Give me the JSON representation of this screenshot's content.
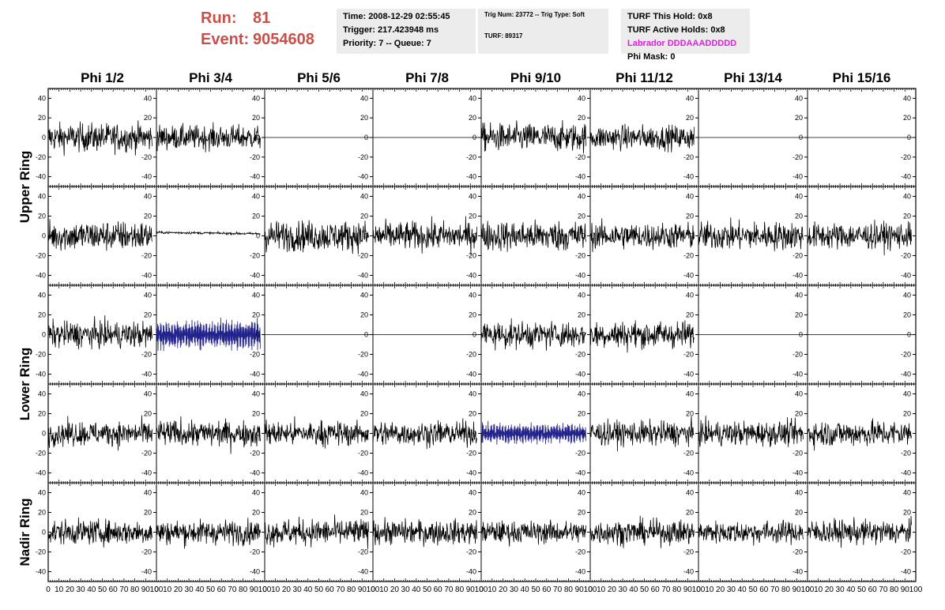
{
  "header": {
    "run_label": "Run:",
    "run_value": "81",
    "event_label": "Event:",
    "event_value": "9054608",
    "accent_color": "#c8504a"
  },
  "time_box": {
    "time": "Time: 2008-12-29 02:55:45",
    "trigger": "Trigger: 217.423948 ms",
    "priority": "Priority: 7 -- Queue: 7"
  },
  "trig_box": {
    "trig": "Trig Num: 23772 -- Trig Type: Soft",
    "turf": "TURF: 89317"
  },
  "turf_box": {
    "this_hold": "TURF This Hold: 0x8",
    "active_holds": "TURF Active Holds: 0x8",
    "labrador": "Labrador DDDAAADDDDD",
    "phi_mask": "Phi Mask: 0",
    "labrador_color": "#e818e8"
  },
  "chart_data": {
    "type": "line",
    "columns": [
      "Phi 1/2",
      "Phi 3/4",
      "Phi 5/6",
      "Phi 7/8",
      "Phi 9/10",
      "Phi 11/12",
      "Phi 13/14",
      "Phi 15/16"
    ],
    "ring_labels": [
      "Upper Ring",
      "Lower Ring",
      "Nadir Ring"
    ],
    "xlim": [
      0,
      100
    ],
    "ylim": [
      -50,
      50
    ],
    "x_ticks": [
      0,
      10,
      20,
      30,
      40,
      50,
      60,
      70,
      80,
      90,
      100
    ],
    "x_tick_labels": [
      "0",
      "10",
      "20",
      "30",
      "40",
      "50",
      "60",
      "70",
      "80",
      "90",
      "100"
    ],
    "y_ticks": [
      -40,
      -20,
      0,
      20,
      40
    ],
    "y_tick_labels": [
      "-40",
      "-20",
      "0",
      "20",
      "40"
    ],
    "x_range_samples": [
      0,
      96
    ],
    "rows": [
      {
        "row_index": 0,
        "cells": [
          {
            "column": "Phi 1/2",
            "style": "noise",
            "amplitude": 14,
            "color": "#000000"
          },
          {
            "column": "Phi 3/4",
            "style": "noise",
            "amplitude": 12,
            "color": "#000000"
          },
          {
            "column": "Phi 5/6",
            "style": "flat",
            "amplitude": 0,
            "color": "#000000"
          },
          {
            "column": "Phi 7/8",
            "style": "flat",
            "amplitude": 0,
            "color": "#000000"
          },
          {
            "column": "Phi 9/10",
            "style": "noise",
            "amplitude": 14,
            "color": "#000000"
          },
          {
            "column": "Phi 11/12",
            "style": "noise",
            "amplitude": 12,
            "color": "#000000"
          },
          {
            "column": "Phi 13/14",
            "style": "flat",
            "amplitude": 0,
            "color": "#000000"
          },
          {
            "column": "Phi 15/16",
            "style": "flat",
            "amplitude": 0,
            "color": "#000000"
          }
        ]
      },
      {
        "row_index": 1,
        "cells": [
          {
            "column": "Phi 1/2",
            "style": "noise",
            "amplitude": 15,
            "color": "#000000"
          },
          {
            "column": "Phi 3/4",
            "style": "small",
            "amplitude": 2,
            "color": "#000000"
          },
          {
            "column": "Phi 5/6",
            "style": "noise",
            "amplitude": 15,
            "color": "#000000"
          },
          {
            "column": "Phi 7/8",
            "style": "noise",
            "amplitude": 14,
            "color": "#000000"
          },
          {
            "column": "Phi 9/10",
            "style": "noise",
            "amplitude": 15,
            "color": "#000000"
          },
          {
            "column": "Phi 11/12",
            "style": "noise",
            "amplitude": 13,
            "color": "#000000"
          },
          {
            "column": "Phi 13/14",
            "style": "noise",
            "amplitude": 14,
            "color": "#000000"
          },
          {
            "column": "Phi 15/16",
            "style": "noise",
            "amplitude": 13,
            "color": "#000000"
          }
        ]
      },
      {
        "row_index": 2,
        "cells": [
          {
            "column": "Phi 1/2",
            "style": "noise",
            "amplitude": 13,
            "color": "#000000"
          },
          {
            "column": "Phi 3/4",
            "style": "blue",
            "amplitude": 16,
            "color": "#23238e"
          },
          {
            "column": "Phi 5/6",
            "style": "flat",
            "amplitude": 0,
            "color": "#000000"
          },
          {
            "column": "Phi 7/8",
            "style": "flat",
            "amplitude": 0,
            "color": "#000000"
          },
          {
            "column": "Phi 9/10",
            "style": "noise",
            "amplitude": 13,
            "color": "#000000"
          },
          {
            "column": "Phi 11/12",
            "style": "noise",
            "amplitude": 13,
            "color": "#000000"
          },
          {
            "column": "Phi 13/14",
            "style": "flat",
            "amplitude": 0,
            "color": "#000000"
          },
          {
            "column": "Phi 15/16",
            "style": "flat",
            "amplitude": 0,
            "color": "#000000"
          }
        ]
      },
      {
        "row_index": 3,
        "cells": [
          {
            "column": "Phi 1/2",
            "style": "noise",
            "amplitude": 12,
            "color": "#000000"
          },
          {
            "column": "Phi 3/4",
            "style": "noise",
            "amplitude": 13,
            "color": "#000000"
          },
          {
            "column": "Phi 5/6",
            "style": "noise",
            "amplitude": 12,
            "color": "#000000"
          },
          {
            "column": "Phi 7/8",
            "style": "noise",
            "amplitude": 12,
            "color": "#000000"
          },
          {
            "column": "Phi 9/10",
            "style": "blue",
            "amplitude": 11,
            "color": "#23238e"
          },
          {
            "column": "Phi 11/12",
            "style": "noise",
            "amplitude": 12,
            "color": "#000000"
          },
          {
            "column": "Phi 13/14",
            "style": "noise",
            "amplitude": 12,
            "color": "#000000"
          },
          {
            "column": "Phi 15/16",
            "style": "noise",
            "amplitude": 13,
            "color": "#000000"
          }
        ]
      },
      {
        "row_index": 4,
        "cells": [
          {
            "column": "Phi 1/2",
            "style": "noise",
            "amplitude": 12,
            "color": "#000000"
          },
          {
            "column": "Phi 3/4",
            "style": "noise",
            "amplitude": 12,
            "color": "#000000"
          },
          {
            "column": "Phi 5/6",
            "style": "noise",
            "amplitude": 13,
            "color": "#000000"
          },
          {
            "column": "Phi 7/8",
            "style": "noise",
            "amplitude": 12,
            "color": "#000000"
          },
          {
            "column": "Phi 9/10",
            "style": "noise",
            "amplitude": 11,
            "color": "#000000"
          },
          {
            "column": "Phi 11/12",
            "style": "noise",
            "amplitude": 12,
            "color": "#000000"
          },
          {
            "column": "Phi 13/14",
            "style": "noise",
            "amplitude": 11,
            "color": "#000000"
          },
          {
            "column": "Phi 15/16",
            "style": "noise",
            "amplitude": 12,
            "color": "#000000"
          }
        ]
      }
    ]
  }
}
